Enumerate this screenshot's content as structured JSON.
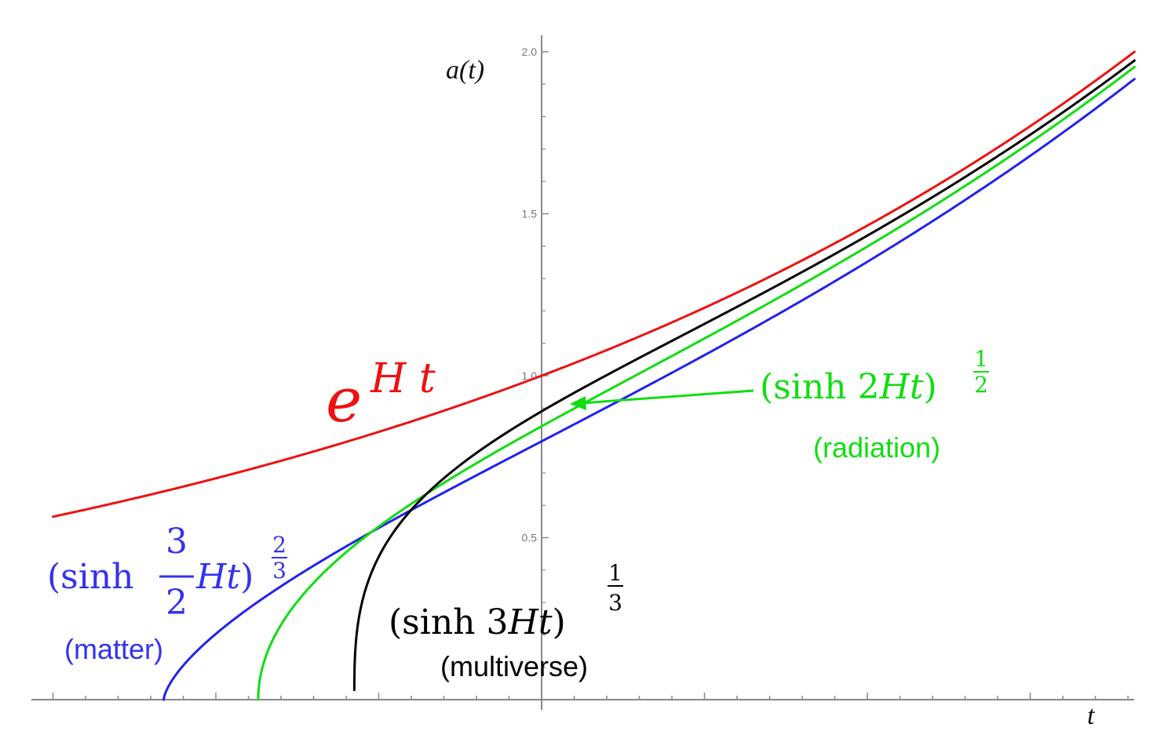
{
  "chart_data": {
    "type": "line",
    "title": "",
    "xlabel": "t",
    "ylabel": "a(t)",
    "xlim": [
      -1.5,
      1.82
    ],
    "ylim": [
      0.0,
      2.05
    ],
    "y_ticks": [
      {
        "value": 0.5,
        "label": "0.5"
      },
      {
        "value": 1.0,
        "label": "1.0"
      },
      {
        "value": 1.5,
        "label": "1.5"
      },
      {
        "value": 2.0,
        "label": "2.0"
      }
    ],
    "x_major_ticks": [
      -1.5,
      -1.0,
      -0.5,
      0.0,
      0.5,
      1.0,
      1.5
    ],
    "x_minor_step": 0.1,
    "grid": false,
    "H": 0.3808,
    "series": [
      {
        "id": "exponential",
        "color": "#ee1111",
        "formula": "exp",
        "shift": 0.0,
        "t_start": -1.5,
        "t_end": 1.82
      },
      {
        "id": "matter",
        "color": "#2222ee",
        "formula": "matter",
        "shift": -1.16,
        "t_start": -1.16,
        "t_end": 1.82
      },
      {
        "id": "radiation",
        "color": "#11dd11",
        "formula": "radiation",
        "shift": -0.87,
        "t_start": -0.87,
        "t_end": 1.82
      },
      {
        "id": "multiverse",
        "color": "#000000",
        "formula": "multiverse",
        "shift": -0.575,
        "t_start": -0.575,
        "t_end": 1.82
      }
    ]
  },
  "annotations": {
    "exponential": {
      "base": "e",
      "exponent": "H t",
      "color": "#ee1111"
    },
    "radiation": {
      "open": "(sinh 2",
      "var": "Ht",
      "close": ")",
      "exp_num": "1",
      "exp_den": "2",
      "note": "(radiation)",
      "color": "#11dd11"
    },
    "matter": {
      "open": "(sinh",
      "frac_num": "3",
      "frac_den": "2",
      "var": "Ht",
      "close": ")",
      "exp_num": "2",
      "exp_den": "3",
      "note": "(matter)",
      "color": "#3333ee"
    },
    "multiverse": {
      "open": "(sinh 3",
      "var": "Ht",
      "close": ")",
      "exp_num": "1",
      "exp_den": "3",
      "note": "(multiverse)",
      "color": "#000000"
    }
  }
}
